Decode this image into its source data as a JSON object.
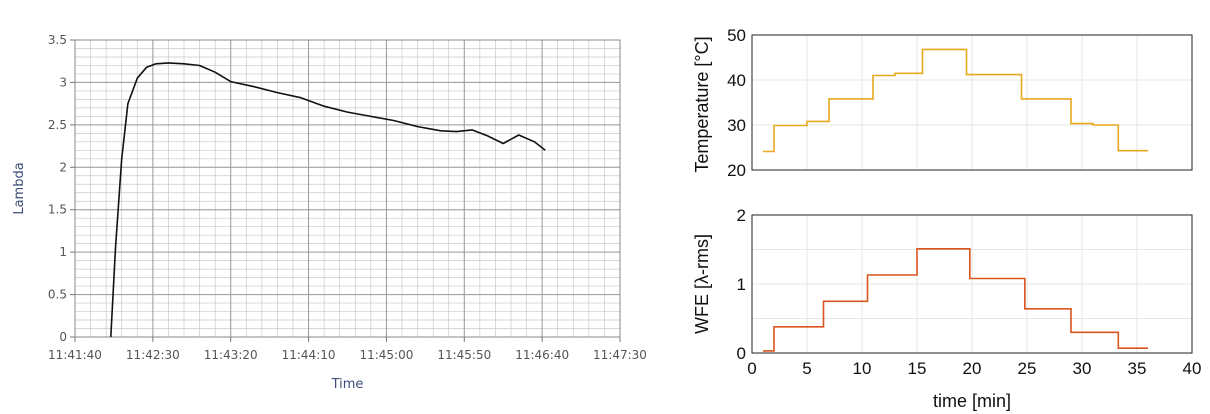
{
  "chart_data": [
    {
      "type": "line",
      "xlabel": "Time",
      "ylabel": "Lambda",
      "ylim": [
        0,
        3.5
      ],
      "y_ticks": [
        "0",
        "0.5",
        "1",
        "1.5",
        "2",
        "2.5",
        "3",
        "3.5"
      ],
      "x_ticks": [
        "11:41:40",
        "11:42:30",
        "11:43:20",
        "11:44:10",
        "11:45:00",
        "11:45:50",
        "11:46:40",
        "11:47:30"
      ],
      "grid": true,
      "colors": {
        "line": "#111111",
        "grid_major": "#9a9a9a",
        "grid_minor": "#c9c9c9",
        "frame": "#888888"
      },
      "series": [
        {
          "x": [
            "11:42:03",
            "11:42:06",
            "11:42:10",
            "11:42:14",
            "11:42:20",
            "11:42:26",
            "11:42:32",
            "11:42:40",
            "11:42:50",
            "11:43:00",
            "11:43:10",
            "11:43:20",
            "11:43:35",
            "11:43:50",
            "11:44:05",
            "11:44:20",
            "11:44:35",
            "11:44:50",
            "11:45:05",
            "11:45:20",
            "11:45:35",
            "11:45:45",
            "11:45:55",
            "11:46:05",
            "11:46:15",
            "11:46:25",
            "11:46:35",
            "11:46:42"
          ],
          "values": [
            0.0,
            1.05,
            2.1,
            2.75,
            3.05,
            3.18,
            3.22,
            3.23,
            3.22,
            3.2,
            3.12,
            3.01,
            2.95,
            2.88,
            2.82,
            2.72,
            2.65,
            2.6,
            2.55,
            2.48,
            2.43,
            2.42,
            2.44,
            2.37,
            2.28,
            2.38,
            2.3,
            2.2
          ]
        }
      ]
    },
    {
      "type": "line",
      "xlabel": "",
      "ylabel": "Temperature [°C]",
      "ylim": [
        20,
        50
      ],
      "xlim": [
        0,
        40
      ],
      "y_ticks": [
        "20",
        "30",
        "40",
        "50"
      ],
      "grid": true,
      "colors": {
        "line": "#e8a81c"
      },
      "series": [
        {
          "segments": [
            [
              1,
              2,
              24.1
            ],
            [
              2,
              5,
              29.9
            ],
            [
              5,
              7,
              30.8
            ],
            [
              7,
              11,
              35.8
            ],
            [
              11,
              13,
              41.0
            ],
            [
              13,
              15.5,
              41.5
            ],
            [
              15.5,
              19.5,
              46.8
            ],
            [
              19.5,
              24.5,
              41.2
            ],
            [
              24.5,
              29,
              35.8
            ],
            [
              29,
              31,
              30.3
            ],
            [
              31,
              33.3,
              30.0
            ],
            [
              33.3,
              36,
              24.3
            ]
          ]
        }
      ]
    },
    {
      "type": "line",
      "xlabel": "time [min]",
      "ylabel": "WFE [λ-rms]",
      "ylim": [
        0,
        2
      ],
      "xlim": [
        0,
        40
      ],
      "x_ticks": [
        "0",
        "5",
        "10",
        "15",
        "20",
        "25",
        "30",
        "35",
        "40"
      ],
      "y_ticks": [
        "0",
        "1",
        "2"
      ],
      "grid": true,
      "colors": {
        "line": "#d9541e"
      },
      "series": [
        {
          "segments": [
            [
              1,
              2,
              0.03
            ],
            [
              2,
              6.5,
              0.38
            ],
            [
              6.5,
              10.5,
              0.75
            ],
            [
              10.5,
              15,
              1.13
            ],
            [
              15,
              19.8,
              1.51
            ],
            [
              19.8,
              24.8,
              1.08
            ],
            [
              24.8,
              29,
              0.64
            ],
            [
              29,
              33.3,
              0.3
            ],
            [
              33.3,
              36,
              0.07
            ]
          ]
        }
      ]
    }
  ]
}
